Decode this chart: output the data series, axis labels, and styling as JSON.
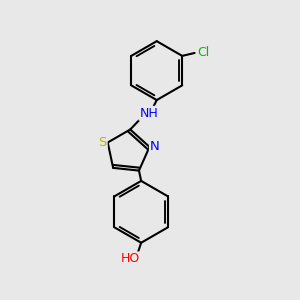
{
  "background_color": "#e8e8e8",
  "bond_color": "#000000",
  "bond_width": 1.5,
  "atom_colors": {
    "N": "#0000ff",
    "S": "#b8b800",
    "O": "#ff0000",
    "Cl": "#00bb00",
    "C": "#000000",
    "H": "#000000"
  },
  "font_size": 8.5,
  "fig_width": 3.0,
  "fig_height": 3.0,
  "dpi": 100
}
